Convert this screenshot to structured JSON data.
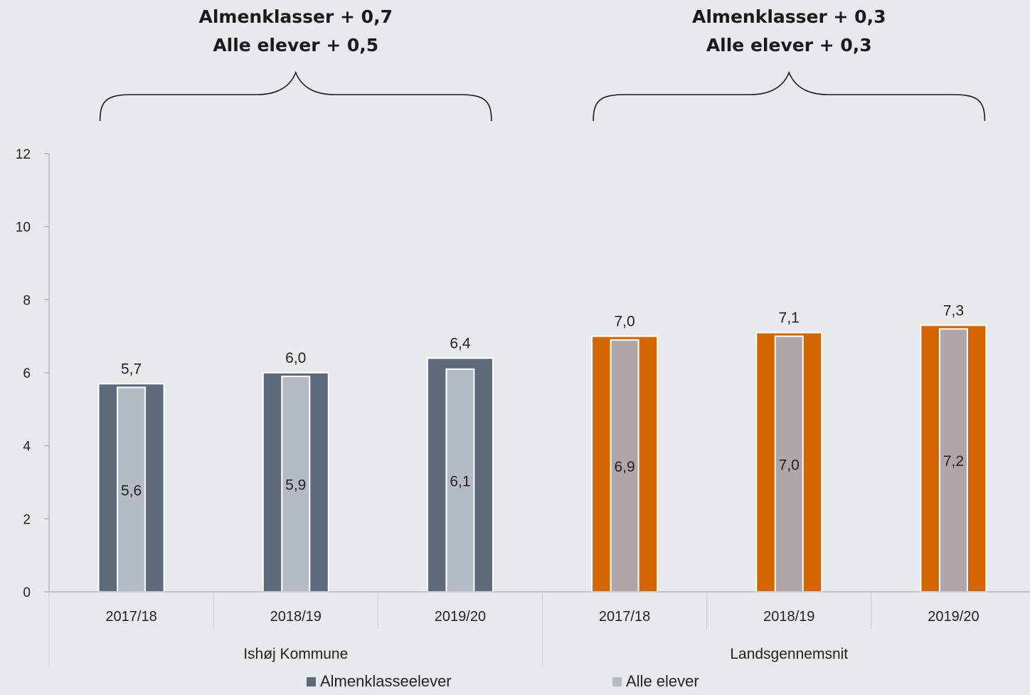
{
  "chart_data": {
    "type": "bar",
    "groups": [
      {
        "name": "Ishøj Kommune",
        "categories": [
          "2017/18",
          "2018/19",
          "2019/20"
        ]
      },
      {
        "name": "Landsgennemsnit",
        "categories": [
          "2017/18",
          "2018/19",
          "2019/20"
        ]
      }
    ],
    "series": [
      {
        "name": "Almenklasseelever",
        "values": [
          5.7,
          6.0,
          6.4,
          7.0,
          7.1,
          7.3
        ],
        "labels": [
          "5,7",
          "6,0",
          "6,4",
          "7,0",
          "7,1",
          "7,3"
        ]
      },
      {
        "name": "Alle elever",
        "values": [
          5.6,
          5.9,
          6.1,
          6.9,
          7.0,
          7.2
        ],
        "labels": [
          "5,6",
          "5,9",
          "6,1",
          "6,9",
          "7,0",
          "7,2"
        ]
      }
    ],
    "ylim": [
      0,
      12
    ],
    "yticks": [
      0,
      2,
      4,
      6,
      8,
      10,
      12
    ],
    "annotations": [
      {
        "lines": [
          "Almenklasser + 0,7",
          "Alle elever + 0,5"
        ],
        "group": 0
      },
      {
        "lines": [
          "Almenklasser + 0,3",
          "Alle elever + 0,3"
        ],
        "group": 1
      }
    ],
    "colors": {
      "almen_ishoj": "#5d6a7b",
      "alle_ishoj": "#b5bbc4",
      "almen_lands": "#d36600",
      "alle_lands": "#b0a5a8",
      "background": "#e8e9ed"
    },
    "legend_position": "bottom",
    "grid": false
  }
}
